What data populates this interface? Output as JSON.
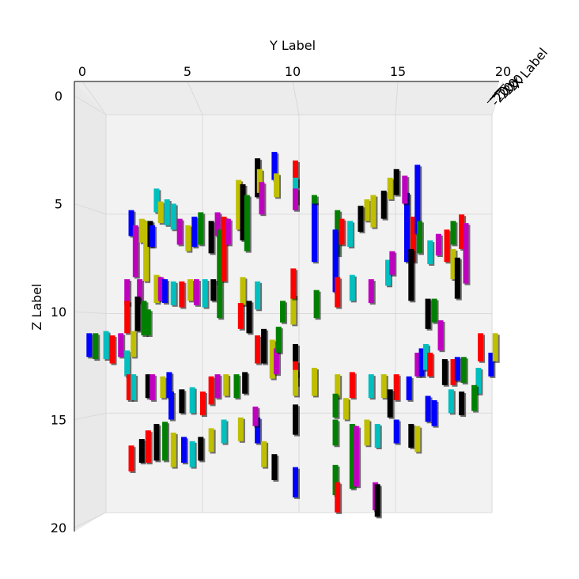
{
  "chart_data": {
    "type": "bar3d",
    "view": "top-down projection (Y horizontal, Z vertical), X axis collapsed",
    "xlabel": "X Label",
    "ylabel": "Y Label",
    "zlabel": "Z Label",
    "ylim": [
      0,
      20
    ],
    "zlim": [
      0,
      20
    ],
    "xlim": [
      -20,
      0
    ],
    "y_ticks": [
      "0",
      "5",
      "10",
      "15",
      "20"
    ],
    "z_ticks": [
      "0",
      "5",
      "10",
      "15",
      "20"
    ],
    "x_ticks_visible": [
      "-20",
      "-20",
      "-20",
      "-20"
    ],
    "grid": true,
    "colors": {
      "r": "#ff0000",
      "g": "#008000",
      "b": "#0000ff",
      "c": "#00bfbf",
      "m": "#bf00bf",
      "y": "#bfbf00",
      "k": "#000000"
    },
    "bars": [
      {
        "y": 9.0,
        "z": 2.6,
        "h": 1.3,
        "color": "b"
      },
      {
        "y": 9.1,
        "z": 3.6,
        "h": 1.1,
        "color": "y"
      },
      {
        "y": 8.2,
        "z": 2.9,
        "h": 1.8,
        "color": "k"
      },
      {
        "y": 8.3,
        "z": 3.4,
        "h": 1.1,
        "color": "y"
      },
      {
        "y": 8.4,
        "z": 4.0,
        "h": 1.5,
        "color": "m"
      },
      {
        "y": 7.3,
        "z": 3.9,
        "h": 2.3,
        "color": "y"
      },
      {
        "y": 7.5,
        "z": 4.1,
        "h": 2.6,
        "color": "k"
      },
      {
        "y": 7.7,
        "z": 4.6,
        "h": 2.6,
        "color": "g"
      },
      {
        "y": 10.0,
        "z": 3.0,
        "h": 1.2,
        "color": "r"
      },
      {
        "y": 10.0,
        "z": 3.8,
        "h": 1.2,
        "color": "c"
      },
      {
        "y": 10.0,
        "z": 4.3,
        "h": 1.0,
        "color": "m"
      },
      {
        "y": 10.9,
        "z": 4.9,
        "h": 2.8,
        "color": "b"
      },
      {
        "y": 10.9,
        "z": 4.6,
        "h": 0.4,
        "color": "g"
      },
      {
        "y": 13.4,
        "z": 4.8,
        "h": 1.0,
        "color": "y"
      },
      {
        "y": 13.1,
        "z": 5.1,
        "h": 1.2,
        "color": "k"
      },
      {
        "y": 13.7,
        "z": 4.6,
        "h": 1.5,
        "color": "y"
      },
      {
        "y": 14.2,
        "z": 4.4,
        "h": 1.3,
        "color": "k"
      },
      {
        "y": 14.5,
        "z": 3.8,
        "h": 1.0,
        "color": "y"
      },
      {
        "y": 14.8,
        "z": 3.4,
        "h": 1.2,
        "color": "k"
      },
      {
        "y": 15.3,
        "z": 4.5,
        "h": 3.2,
        "color": "b"
      },
      {
        "y": 15.6,
        "z": 5.6,
        "h": 2.1,
        "color": "r"
      },
      {
        "y": 15.5,
        "z": 7.1,
        "h": 2.4,
        "color": "k"
      },
      {
        "y": 15.8,
        "z": 3.2,
        "h": 3.2,
        "color": "b"
      },
      {
        "y": 15.9,
        "z": 5.8,
        "h": 1.5,
        "color": "g"
      },
      {
        "y": 15.2,
        "z": 3.7,
        "h": 1.3,
        "color": "m"
      },
      {
        "y": 12.0,
        "z": 5.3,
        "h": 2.1,
        "color": "g"
      },
      {
        "y": 11.9,
        "z": 6.2,
        "h": 2.9,
        "color": "b"
      },
      {
        "y": 12.2,
        "z": 5.7,
        "h": 1.2,
        "color": "r"
      },
      {
        "y": 12.6,
        "z": 5.8,
        "h": 1.2,
        "color": "c"
      },
      {
        "y": 2.2,
        "z": 5.3,
        "h": 1.2,
        "color": "b"
      },
      {
        "y": 2.4,
        "z": 6.0,
        "h": 2.4,
        "color": "m"
      },
      {
        "y": 2.7,
        "z": 5.7,
        "h": 1.1,
        "color": "y"
      },
      {
        "y": 2.9,
        "z": 5.8,
        "h": 2.8,
        "color": "y"
      },
      {
        "y": 3.1,
        "z": 5.8,
        "h": 1.2,
        "color": "k"
      },
      {
        "y": 3.2,
        "z": 6.0,
        "h": 1.0,
        "color": "b"
      },
      {
        "y": 3.4,
        "z": 4.3,
        "h": 1.1,
        "color": "c"
      },
      {
        "y": 3.6,
        "z": 4.9,
        "h": 1.0,
        "color": "y"
      },
      {
        "y": 3.9,
        "z": 4.8,
        "h": 1.2,
        "color": "c"
      },
      {
        "y": 4.2,
        "z": 5.0,
        "h": 1.2,
        "color": "c"
      },
      {
        "y": 4.5,
        "z": 5.7,
        "h": 1.2,
        "color": "m"
      },
      {
        "y": 4.9,
        "z": 6.0,
        "h": 1.2,
        "color": "y"
      },
      {
        "y": 5.2,
        "z": 5.6,
        "h": 1.4,
        "color": "b"
      },
      {
        "y": 5.5,
        "z": 5.4,
        "h": 1.5,
        "color": "g"
      },
      {
        "y": 6.0,
        "z": 5.8,
        "h": 1.5,
        "color": "k"
      },
      {
        "y": 6.3,
        "z": 5.4,
        "h": 1.1,
        "color": "m"
      },
      {
        "y": 6.4,
        "z": 6.2,
        "h": 2.6,
        "color": "g"
      },
      {
        "y": 6.6,
        "z": 5.6,
        "h": 3.0,
        "color": "r"
      },
      {
        "y": 6.8,
        "z": 5.7,
        "h": 1.2,
        "color": "m"
      },
      {
        "y": 2.0,
        "z": 8.5,
        "h": 1.2,
        "color": "m"
      },
      {
        "y": 2.6,
        "z": 8.5,
        "h": 1.1,
        "color": "m"
      },
      {
        "y": 3.4,
        "z": 8.3,
        "h": 1.3,
        "color": "y"
      },
      {
        "y": 3.6,
        "z": 8.4,
        "h": 1.1,
        "color": "m"
      },
      {
        "y": 3.8,
        "z": 8.5,
        "h": 1.1,
        "color": "b"
      },
      {
        "y": 4.2,
        "z": 8.6,
        "h": 1.1,
        "color": "c"
      },
      {
        "y": 4.6,
        "z": 8.6,
        "h": 1.2,
        "color": "r"
      },
      {
        "y": 5.0,
        "z": 8.5,
        "h": 1.0,
        "color": "y"
      },
      {
        "y": 5.3,
        "z": 8.5,
        "h": 1.2,
        "color": "m"
      },
      {
        "y": 5.7,
        "z": 8.5,
        "h": 1.3,
        "color": "c"
      },
      {
        "y": 6.1,
        "z": 8.5,
        "h": 1.0,
        "color": "k"
      },
      {
        "y": 6.4,
        "z": 8.8,
        "h": 1.5,
        "color": "g"
      },
      {
        "y": 7.5,
        "z": 8.4,
        "h": 1.3,
        "color": "y"
      },
      {
        "y": 8.2,
        "z": 8.6,
        "h": 1.3,
        "color": "c"
      },
      {
        "y": 7.4,
        "z": 9.6,
        "h": 1.2,
        "color": "r"
      },
      {
        "y": 7.8,
        "z": 9.5,
        "h": 1.5,
        "color": "k"
      },
      {
        "y": 9.4,
        "z": 9.5,
        "h": 1.0,
        "color": "g"
      },
      {
        "y": 9.9,
        "z": 9.2,
        "h": 1.4,
        "color": "y"
      },
      {
        "y": 9.9,
        "z": 8.0,
        "h": 1.4,
        "color": "r"
      },
      {
        "y": 11.0,
        "z": 9.0,
        "h": 1.3,
        "color": "g"
      },
      {
        "y": 12.0,
        "z": 8.4,
        "h": 1.4,
        "color": "r"
      },
      {
        "y": 12.7,
        "z": 8.3,
        "h": 1.2,
        "color": "c"
      },
      {
        "y": 13.6,
        "z": 8.5,
        "h": 1.1,
        "color": "m"
      },
      {
        "y": 14.4,
        "z": 7.6,
        "h": 1.2,
        "color": "c"
      },
      {
        "y": 14.6,
        "z": 7.2,
        "h": 1.1,
        "color": "m"
      },
      {
        "y": 16.4,
        "z": 6.7,
        "h": 1.1,
        "color": "c"
      },
      {
        "y": 16.8,
        "z": 6.4,
        "h": 1.0,
        "color": "m"
      },
      {
        "y": 17.2,
        "z": 6.2,
        "h": 1.5,
        "color": "r"
      },
      {
        "y": 17.5,
        "z": 5.8,
        "h": 1.1,
        "color": "g"
      },
      {
        "y": 17.5,
        "z": 7.1,
        "h": 1.4,
        "color": "y"
      },
      {
        "y": 17.7,
        "z": 7.5,
        "h": 1.9,
        "color": "k"
      },
      {
        "y": 17.9,
        "z": 5.5,
        "h": 1.6,
        "color": "r"
      },
      {
        "y": 18.1,
        "z": 5.9,
        "h": 2.8,
        "color": "m"
      },
      {
        "y": 2.0,
        "z": 9.5,
        "h": 1.5,
        "color": "r"
      },
      {
        "y": 2.5,
        "z": 9.3,
        "h": 1.6,
        "color": "k"
      },
      {
        "y": 2.8,
        "z": 9.5,
        "h": 1.6,
        "color": "g"
      },
      {
        "y": 3.0,
        "z": 9.9,
        "h": 1.2,
        "color": "g"
      },
      {
        "y": 0.2,
        "z": 11.0,
        "h": 1.1,
        "color": "b"
      },
      {
        "y": 0.5,
        "z": 11.0,
        "h": 1.2,
        "color": "g"
      },
      {
        "y": 1.0,
        "z": 10.9,
        "h": 1.3,
        "color": "c"
      },
      {
        "y": 1.3,
        "z": 11.1,
        "h": 1.3,
        "color": "r"
      },
      {
        "y": 1.7,
        "z": 11.0,
        "h": 1.1,
        "color": "m"
      },
      {
        "y": 2.0,
        "z": 11.8,
        "h": 1.2,
        "color": "c"
      },
      {
        "y": 2.3,
        "z": 10.9,
        "h": 1.2,
        "color": "y"
      },
      {
        "y": 8.2,
        "z": 11.1,
        "h": 1.3,
        "color": "r"
      },
      {
        "y": 8.5,
        "z": 10.8,
        "h": 1.6,
        "color": "k"
      },
      {
        "y": 8.9,
        "z": 11.3,
        "h": 1.8,
        "color": "y"
      },
      {
        "y": 9.1,
        "z": 11.7,
        "h": 1.2,
        "color": "m"
      },
      {
        "y": 9.2,
        "z": 10.7,
        "h": 1.2,
        "color": "g"
      },
      {
        "y": 10.0,
        "z": 11.5,
        "h": 1.5,
        "color": "k"
      },
      {
        "y": 10.0,
        "z": 12.3,
        "h": 1.1,
        "color": "r"
      },
      {
        "y": 10.0,
        "z": 12.7,
        "h": 1.2,
        "color": "y"
      },
      {
        "y": 10.9,
        "z": 12.6,
        "h": 1.3,
        "color": "y"
      },
      {
        "y": 15.8,
        "z": 11.9,
        "h": 1.1,
        "color": "m"
      },
      {
        "y": 16.0,
        "z": 11.7,
        "h": 1.3,
        "color": "b"
      },
      {
        "y": 16.2,
        "z": 11.5,
        "h": 1.2,
        "color": "c"
      },
      {
        "y": 16.4,
        "z": 11.9,
        "h": 1.1,
        "color": "r"
      },
      {
        "y": 17.1,
        "z": 12.2,
        "h": 1.2,
        "color": "k"
      },
      {
        "y": 17.5,
        "z": 12.2,
        "h": 1.2,
        "color": "r"
      },
      {
        "y": 17.7,
        "z": 12.1,
        "h": 1.1,
        "color": "b"
      },
      {
        "y": 18.0,
        "z": 12.1,
        "h": 1.2,
        "color": "g"
      },
      {
        "y": 18.7,
        "z": 12.6,
        "h": 1.2,
        "color": "c"
      },
      {
        "y": 18.8,
        "z": 11.0,
        "h": 1.3,
        "color": "r"
      },
      {
        "y": 19.3,
        "z": 11.9,
        "h": 1.1,
        "color": "b"
      },
      {
        "y": 19.5,
        "z": 11.0,
        "h": 1.3,
        "color": "y"
      },
      {
        "y": 16.3,
        "z": 9.4,
        "h": 1.4,
        "color": "k"
      },
      {
        "y": 16.6,
        "z": 9.4,
        "h": 1.1,
        "color": "g"
      },
      {
        "y": 16.9,
        "z": 10.4,
        "h": 1.4,
        "color": "m"
      },
      {
        "y": 2.1,
        "z": 12.9,
        "h": 1.2,
        "color": "r"
      },
      {
        "y": 2.3,
        "z": 12.9,
        "h": 1.2,
        "color": "c"
      },
      {
        "y": 3.0,
        "z": 12.9,
        "h": 1.1,
        "color": "k"
      },
      {
        "y": 3.2,
        "z": 12.9,
        "h": 1.2,
        "color": "m"
      },
      {
        "y": 3.7,
        "z": 13.0,
        "h": 1.0,
        "color": "y"
      },
      {
        "y": 4.0,
        "z": 12.8,
        "h": 1.2,
        "color": "b"
      },
      {
        "y": 6.0,
        "z": 13.0,
        "h": 1.3,
        "color": "r"
      },
      {
        "y": 6.3,
        "z": 12.9,
        "h": 1.1,
        "color": "m"
      },
      {
        "y": 6.7,
        "z": 12.9,
        "h": 1.0,
        "color": "y"
      },
      {
        "y": 7.2,
        "z": 12.9,
        "h": 1.1,
        "color": "g"
      },
      {
        "y": 7.6,
        "z": 12.8,
        "h": 1.0,
        "color": "k"
      },
      {
        "y": 12.0,
        "z": 12.9,
        "h": 1.1,
        "color": "y"
      },
      {
        "y": 12.7,
        "z": 12.8,
        "h": 1.2,
        "color": "r"
      },
      {
        "y": 13.6,
        "z": 12.9,
        "h": 1.1,
        "color": "c"
      },
      {
        "y": 14.2,
        "z": 12.9,
        "h": 1.1,
        "color": "y"
      },
      {
        "y": 14.8,
        "z": 12.9,
        "h": 1.2,
        "color": "r"
      },
      {
        "y": 15.4,
        "z": 13.0,
        "h": 1.1,
        "color": "b"
      },
      {
        "y": 4.1,
        "z": 13.7,
        "h": 1.3,
        "color": "b"
      },
      {
        "y": 4.6,
        "z": 13.6,
        "h": 1.1,
        "color": "k"
      },
      {
        "y": 5.1,
        "z": 13.5,
        "h": 1.2,
        "color": "c"
      },
      {
        "y": 5.6,
        "z": 13.7,
        "h": 1.1,
        "color": "r"
      },
      {
        "y": 11.9,
        "z": 13.8,
        "h": 1.1,
        "color": "g"
      },
      {
        "y": 12.4,
        "z": 14.0,
        "h": 1.0,
        "color": "y"
      },
      {
        "y": 14.5,
        "z": 13.6,
        "h": 1.3,
        "color": "k"
      },
      {
        "y": 16.3,
        "z": 13.9,
        "h": 1.2,
        "color": "b"
      },
      {
        "y": 17.4,
        "z": 13.6,
        "h": 1.1,
        "color": "c"
      },
      {
        "y": 17.9,
        "z": 13.7,
        "h": 1.1,
        "color": "k"
      },
      {
        "y": 18.5,
        "z": 13.4,
        "h": 1.2,
        "color": "g"
      },
      {
        "y": 2.2,
        "z": 16.2,
        "h": 1.2,
        "color": "r"
      },
      {
        "y": 2.7,
        "z": 15.9,
        "h": 1.1,
        "color": "k"
      },
      {
        "y": 3.0,
        "z": 15.5,
        "h": 1.5,
        "color": "r"
      },
      {
        "y": 3.4,
        "z": 15.2,
        "h": 1.7,
        "color": "k"
      },
      {
        "y": 3.8,
        "z": 15.1,
        "h": 1.8,
        "color": "g"
      },
      {
        "y": 4.2,
        "z": 15.6,
        "h": 1.6,
        "color": "y"
      },
      {
        "y": 4.7,
        "z": 15.8,
        "h": 1.2,
        "color": "b"
      },
      {
        "y": 5.1,
        "z": 16.0,
        "h": 1.2,
        "color": "c"
      },
      {
        "y": 5.5,
        "z": 15.8,
        "h": 1.1,
        "color": "k"
      },
      {
        "y": 6.0,
        "z": 15.4,
        "h": 1.1,
        "color": "y"
      },
      {
        "y": 6.6,
        "z": 15.0,
        "h": 1.1,
        "color": "c"
      },
      {
        "y": 7.4,
        "z": 14.9,
        "h": 1.1,
        "color": "y"
      },
      {
        "y": 8.2,
        "z": 14.9,
        "h": 1.2,
        "color": "b"
      },
      {
        "y": 8.1,
        "z": 14.4,
        "h": 0.9,
        "color": "m"
      },
      {
        "y": 8.5,
        "z": 16.0,
        "h": 1.2,
        "color": "y"
      },
      {
        "y": 9.0,
        "z": 16.6,
        "h": 1.2,
        "color": "k"
      },
      {
        "y": 10.0,
        "z": 17.2,
        "h": 1.4,
        "color": "b"
      },
      {
        "y": 10.0,
        "z": 14.3,
        "h": 1.4,
        "color": "k"
      },
      {
        "y": 11.9,
        "z": 15.0,
        "h": 1.2,
        "color": "g"
      },
      {
        "y": 11.9,
        "z": 17.1,
        "h": 1.4,
        "color": "g"
      },
      {
        "y": 12.0,
        "z": 17.9,
        "h": 1.4,
        "color": "r"
      },
      {
        "y": 12.7,
        "z": 15.2,
        "h": 3.0,
        "color": "g"
      },
      {
        "y": 12.9,
        "z": 15.3,
        "h": 2.8,
        "color": "m"
      },
      {
        "y": 13.4,
        "z": 15.0,
        "h": 1.2,
        "color": "y"
      },
      {
        "y": 13.9,
        "z": 15.2,
        "h": 1.1,
        "color": "c"
      },
      {
        "y": 14.8,
        "z": 15.0,
        "h": 1.1,
        "color": "b"
      },
      {
        "y": 15.5,
        "z": 15.2,
        "h": 1.1,
        "color": "k"
      },
      {
        "y": 15.8,
        "z": 15.3,
        "h": 1.2,
        "color": "y"
      },
      {
        "y": 16.6,
        "z": 14.1,
        "h": 1.2,
        "color": "b"
      },
      {
        "y": 13.8,
        "z": 17.9,
        "h": 1.3,
        "color": "m"
      },
      {
        "y": 13.9,
        "z": 18.0,
        "h": 1.5,
        "color": "k"
      }
    ]
  }
}
